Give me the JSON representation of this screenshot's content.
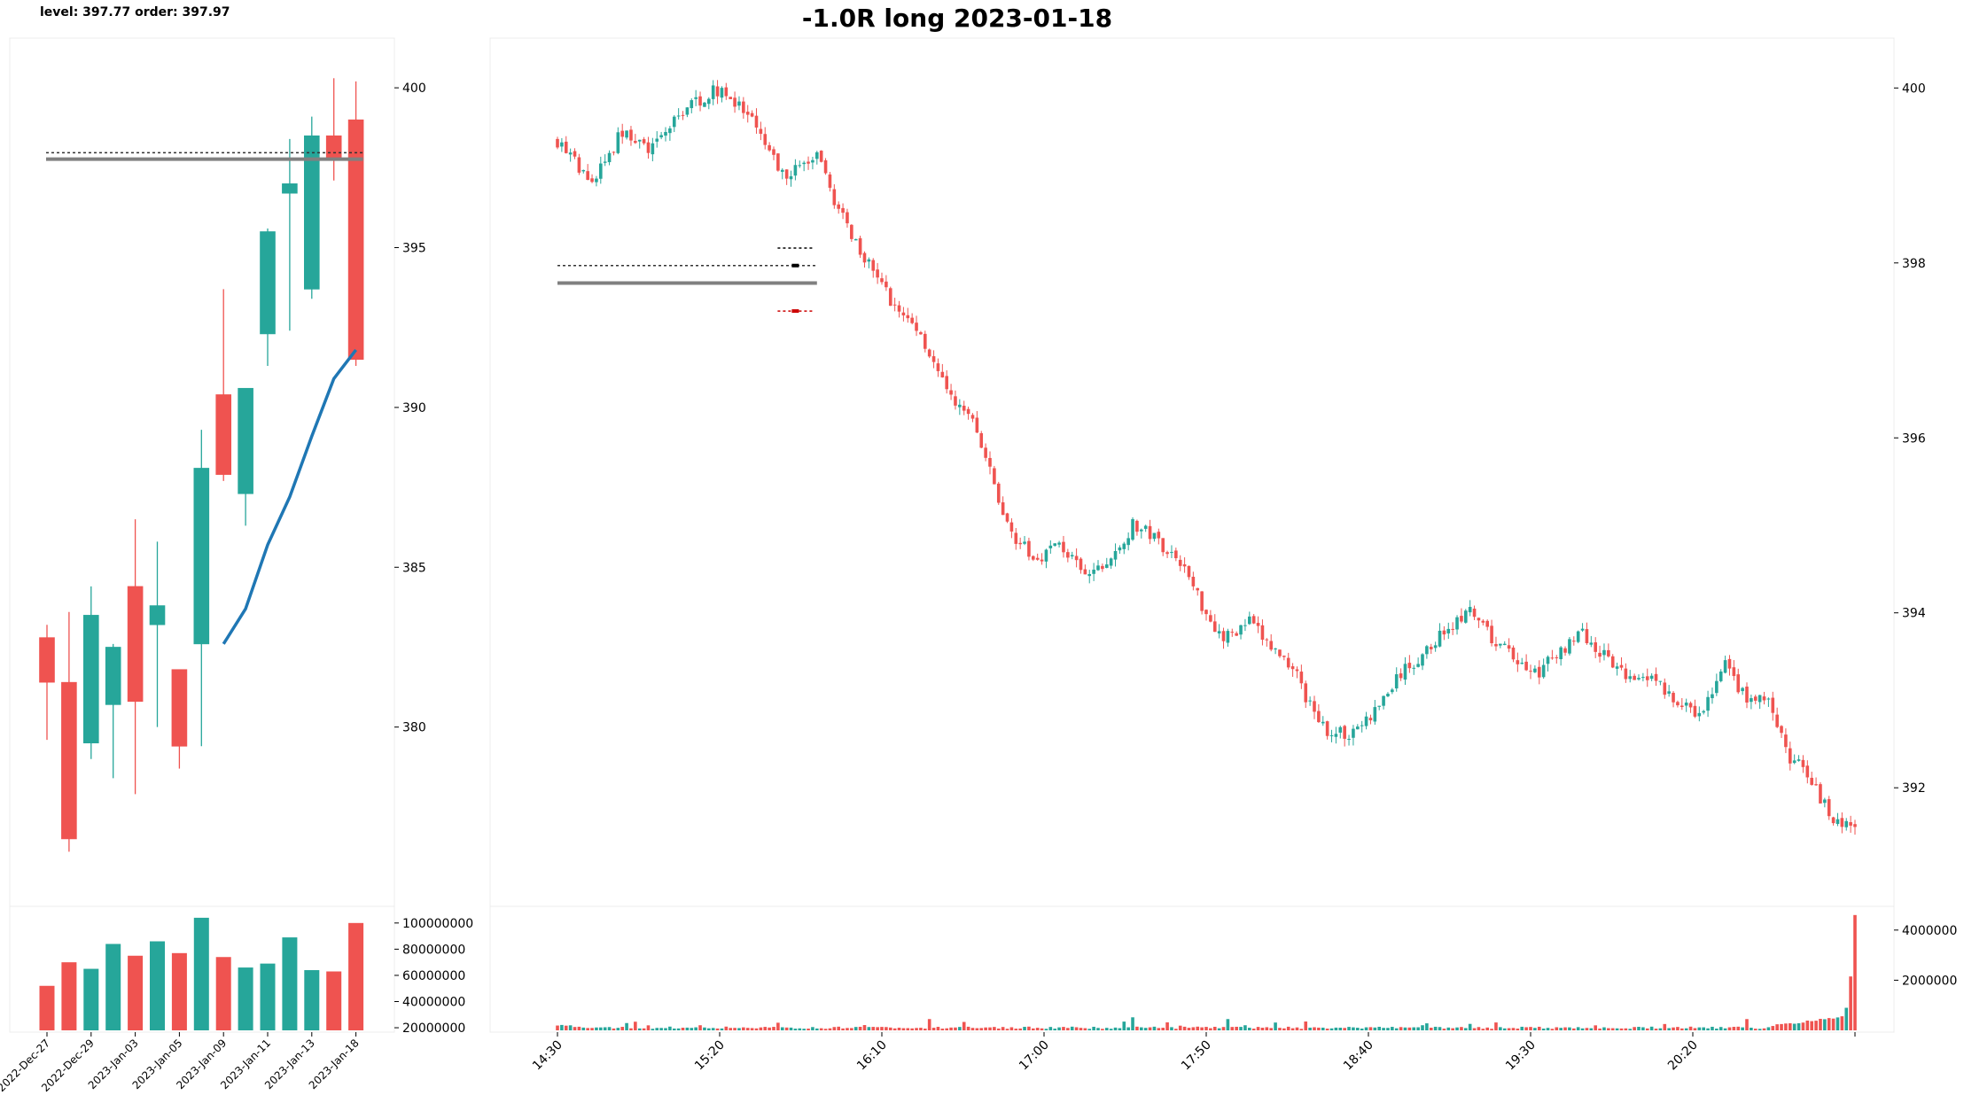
{
  "header": {
    "note": "level: 397.77  order: 397.97",
    "title": "-1.0R long 2023-01-18"
  },
  "colors": {
    "up": "#26a69a",
    "down": "#ef5350",
    "ma": "#1f77b4",
    "level": "#808080",
    "order": "#333333",
    "stop": "#cc0000"
  },
  "chart_data": [
    {
      "type": "candlestick",
      "panel": "daily",
      "price_ticks": [
        "380",
        "385",
        "390",
        "395",
        "400"
      ],
      "volume_ticks": [
        "20000000",
        "40000000",
        "60000000",
        "80000000",
        "100000000"
      ],
      "x_tick_labels": [
        "2022-Dec-27",
        "2022-Dec-29",
        "2023-Jan-03",
        "2023-Jan-05",
        "2023-Jan-09",
        "2023-Jan-11",
        "2023-Jan-13",
        "2023-Jan-18"
      ],
      "ylim": [
        375.5,
        401.5
      ],
      "volume_ylim": [
        18000000,
        108000000
      ],
      "candles": [
        {
          "o": 382.8,
          "h": 383.2,
          "l": 379.6,
          "c": 381.4,
          "v": 52000000
        },
        {
          "o": 381.4,
          "h": 383.6,
          "l": 376.1,
          "c": 376.5,
          "v": 70000000
        },
        {
          "o": 379.5,
          "h": 384.4,
          "l": 379.0,
          "c": 383.5,
          "v": 65000000
        },
        {
          "o": 380.7,
          "h": 382.6,
          "l": 378.4,
          "c": 382.5,
          "v": 84000000
        },
        {
          "o": 384.4,
          "h": 386.5,
          "l": 377.9,
          "c": 380.8,
          "v": 75000000
        },
        {
          "o": 383.2,
          "h": 385.8,
          "l": 380.0,
          "c": 383.8,
          "v": 86000000
        },
        {
          "o": 381.8,
          "h": 381.8,
          "l": 378.7,
          "c": 379.4,
          "v": 77000000
        },
        {
          "o": 382.6,
          "h": 389.3,
          "l": 379.4,
          "c": 388.1,
          "v": 104000000
        },
        {
          "o": 390.4,
          "h": 393.7,
          "l": 387.7,
          "c": 387.9,
          "v": 74000000
        },
        {
          "o": 387.3,
          "h": 390.6,
          "l": 386.3,
          "c": 390.6,
          "v": 66000000
        },
        {
          "o": 392.3,
          "h": 395.6,
          "l": 391.3,
          "c": 395.5,
          "v": 69000000
        },
        {
          "o": 396.7,
          "h": 398.4,
          "l": 392.4,
          "c": 397.0,
          "v": 89000000
        },
        {
          "o": 393.7,
          "h": 399.1,
          "l": 393.4,
          "c": 398.5,
          "v": 64000000
        },
        {
          "o": 398.5,
          "h": 400.3,
          "l": 397.1,
          "c": 397.8,
          "v": 63000000
        },
        {
          "o": 399.0,
          "h": 400.2,
          "l": 391.3,
          "c": 391.5,
          "v": 100000000
        }
      ],
      "ma": [
        null,
        null,
        null,
        null,
        null,
        null,
        null,
        null,
        382.6,
        383.7,
        385.7,
        387.2,
        389.1,
        390.9,
        391.8
      ],
      "level": 397.77,
      "order": 397.97
    },
    {
      "type": "candlestick",
      "panel": "intraday",
      "price_ticks": [
        "392",
        "394",
        "396",
        "398",
        "400"
      ],
      "volume_ticks": [
        "2000000",
        "4000000"
      ],
      "x_tick_labels": [
        "14:30",
        "15:20",
        "16:10",
        "17:00",
        "17:50",
        "18:40",
        "19:30",
        "20:20"
      ],
      "ylim": [
        391.05,
        400.55
      ],
      "volume_ylim": [
        0,
        4700000
      ],
      "waypoints": [
        [
          0,
          399.4
        ],
        [
          8,
          398.9
        ],
        [
          15,
          399.5
        ],
        [
          22,
          399.3
        ],
        [
          30,
          399.8
        ],
        [
          38,
          400.0
        ],
        [
          45,
          399.6
        ],
        [
          52,
          399.0
        ],
        [
          60,
          399.2
        ],
        [
          66,
          398.5
        ],
        [
          72,
          398.0
        ],
        [
          78,
          397.5
        ],
        [
          84,
          397.2
        ],
        [
          90,
          396.5
        ],
        [
          96,
          396.2
        ],
        [
          100,
          395.6
        ],
        [
          104,
          395.0
        ],
        [
          110,
          394.6
        ],
        [
          116,
          394.8
        ],
        [
          122,
          394.4
        ],
        [
          128,
          394.6
        ],
        [
          133,
          395.0
        ],
        [
          137,
          394.9
        ],
        [
          144,
          394.6
        ],
        [
          150,
          394.0
        ],
        [
          154,
          393.7
        ],
        [
          160,
          393.9
        ],
        [
          165,
          393.6
        ],
        [
          170,
          393.4
        ],
        [
          176,
          392.7
        ],
        [
          182,
          392.6
        ],
        [
          188,
          392.8
        ],
        [
          195,
          393.3
        ],
        [
          200,
          393.5
        ],
        [
          205,
          393.8
        ],
        [
          211,
          394.0
        ],
        [
          216,
          393.7
        ],
        [
          221,
          393.5
        ],
        [
          226,
          393.3
        ],
        [
          231,
          393.5
        ],
        [
          236,
          393.8
        ],
        [
          240,
          393.6
        ],
        [
          246,
          393.3
        ],
        [
          252,
          393.3
        ],
        [
          258,
          393.0
        ],
        [
          264,
          392.8
        ],
        [
          270,
          393.4
        ],
        [
          275,
          393.0
        ],
        [
          280,
          393.0
        ],
        [
          284,
          392.4
        ],
        [
          288,
          392.2
        ],
        [
          292,
          391.9
        ],
        [
          296,
          391.6
        ],
        [
          300,
          391.55
        ]
      ],
      "level_x": [
        0,
        60
      ],
      "level": 397.77,
      "order": 397.97,
      "entry_bar": 55,
      "target": 398.17,
      "stop": 397.45
    }
  ]
}
